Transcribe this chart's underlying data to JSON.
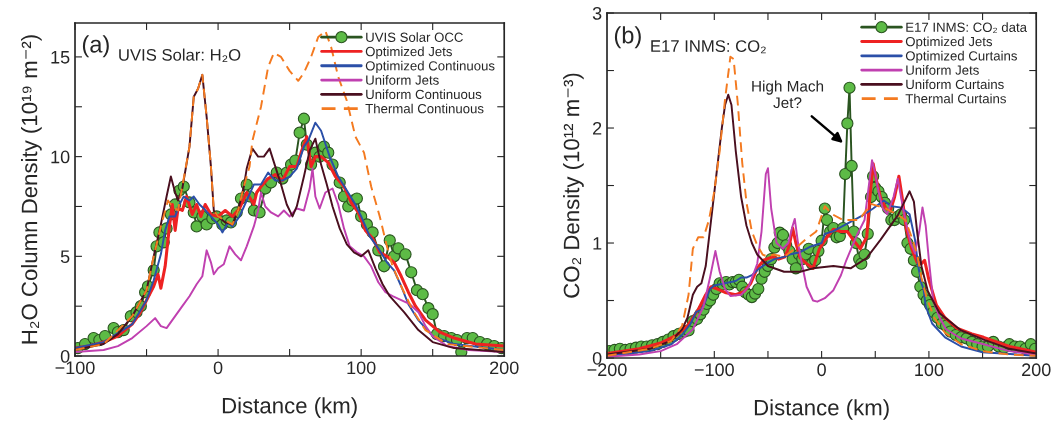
{
  "chart_data": [
    {
      "type": "line",
      "xlabel": "Distance (km)",
      "ylabel": "H₂O Column Density (10¹⁹ m⁻²)",
      "annotations": [
        "(a)",
        "UVIS Solar: H₂O"
      ],
      "xlim": [
        -100,
        200
      ],
      "xticks": [
        {
          "value": -100,
          "label": "−100"
        },
        {
          "value": -50,
          "label": null
        },
        0,
        {
          "value": 50,
          "label": null
        },
        100,
        {
          "value": 150,
          "label": null
        },
        200
      ],
      "ylim": [
        0,
        16.7
      ],
      "yticks": [
        0,
        {
          "value": 2.5,
          "label": null
        },
        5,
        {
          "value": 7.5,
          "label": null
        },
        10,
        {
          "value": 12.5,
          "label": null
        },
        15
      ],
      "legend": "top right",
      "grid": false,
      "series": [
        {
          "name": "UVIS Solar OCC",
          "color": "#5dbb46",
          "marker": "circle",
          "line_style": "solid",
          "x": [
            -98,
            -93,
            -87,
            -83,
            -79,
            -73,
            -70,
            -66,
            -61,
            -57,
            -54,
            -51,
            -49,
            -45,
            -43,
            -41,
            -38,
            -36,
            -33,
            -30,
            -27,
            -24,
            -20,
            -17,
            -15,
            -11,
            -8,
            -4,
            -1,
            3,
            6,
            9,
            13,
            16,
            20,
            22,
            25,
            29,
            33,
            37,
            41,
            45,
            48,
            51,
            54,
            57,
            60,
            62,
            65,
            68,
            71,
            74,
            77,
            80,
            85,
            88,
            91,
            94,
            97,
            100,
            104,
            108,
            112,
            116,
            120,
            123,
            126,
            131,
            135,
            139,
            143,
            147,
            150,
            153,
            158,
            163,
            167,
            170,
            174,
            178,
            183,
            188,
            193,
            198
          ],
          "values": [
            0.4,
            0.6,
            0.9,
            0.8,
            1.0,
            1.4,
            1.2,
            1.3,
            2.0,
            2.2,
            2.5,
            3.2,
            3.5,
            4.3,
            5.5,
            6.2,
            5.7,
            6.4,
            7.1,
            7.6,
            8.3,
            8.5,
            7.7,
            7.2,
            6.5,
            7.0,
            6.6,
            6.9,
            7.0,
            6.6,
            6.8,
            6.7,
            7.2,
            7.9,
            8.6,
            8.0,
            7.3,
            7.2,
            8.4,
            8.7,
            9.2,
            8.9,
            9.2,
            9.6,
            9.8,
            11.2,
            11.9,
            10.6,
            9.6,
            10.2,
            10.0,
            10.5,
            10.2,
            9.6,
            8.7,
            8.0,
            7.5,
            7.8,
            7.9,
            7.0,
            6.6,
            6.2,
            5.3,
            4.5,
            5.8,
            5.0,
            5.4,
            5.1,
            4.2,
            3.3,
            3.1,
            2.4,
            2.1,
            1.1,
            1.0,
            0.9,
            0.8,
            0.2,
            0.9,
            0.9,
            0.7,
            0.6,
            0.5,
            0.4
          ]
        },
        {
          "name": "Optimized Jets",
          "color": "#ee2222",
          "line_style": "solid",
          "x": [
            -100,
            -90,
            -80,
            -70,
            -60,
            -55,
            -50,
            -45,
            -42,
            -40,
            -37,
            -34,
            -32,
            -30,
            -28,
            -25,
            -22,
            -18,
            -15,
            -12,
            -9,
            -5,
            0,
            5,
            10,
            15,
            20,
            25,
            27,
            30,
            35,
            40,
            45,
            50,
            55,
            58,
            62,
            65,
            68,
            72,
            77,
            82,
            88,
            93,
            98,
            103,
            108,
            113,
            118,
            123,
            128,
            133,
            138,
            145,
            155,
            165,
            180,
            200
          ],
          "values": [
            0.4,
            0.5,
            0.7,
            1.0,
            1.6,
            2.1,
            2.8,
            3.5,
            4.1,
            3.4,
            4.5,
            6.5,
            7.6,
            6.3,
            7.4,
            7.3,
            8.0,
            7.1,
            7.6,
            7.0,
            7.6,
            7.1,
            7.0,
            7.3,
            7.0,
            7.4,
            8.2,
            7.6,
            8.2,
            8.5,
            8.9,
            9.1,
            8.8,
            9.5,
            9.5,
            10.2,
            11.0,
            9.5,
            10.0,
            10.0,
            9.7,
            9.0,
            8.5,
            7.7,
            7.2,
            6.3,
            5.9,
            5.2,
            5.0,
            4.7,
            4.0,
            3.2,
            2.5,
            1.8,
            1.2,
            0.9,
            0.6,
            0.5
          ]
        },
        {
          "name": "Optimized Continuous",
          "color": "#2b4fa8",
          "line_style": "solid",
          "x": [
            -100,
            -80,
            -60,
            -50,
            -45,
            -40,
            -37,
            -34,
            -30,
            -27,
            -24,
            -20,
            -17,
            -13,
            -10,
            -5,
            0,
            3,
            7,
            10,
            15,
            20,
            25,
            30,
            35,
            40,
            45,
            50,
            55,
            60,
            63,
            68,
            72,
            78,
            84,
            90,
            96,
            100,
            106,
            112,
            118,
            123,
            128,
            133,
            140,
            150,
            165,
            200
          ],
          "values": [
            0.4,
            0.7,
            1.6,
            2.8,
            3.8,
            5.1,
            6.3,
            7.0,
            7.0,
            7.6,
            8.0,
            7.8,
            8.0,
            7.6,
            7.4,
            7.0,
            6.6,
            6.2,
            6.7,
            6.5,
            7.0,
            7.8,
            8.6,
            8.6,
            9.2,
            8.8,
            8.8,
            9.0,
            9.4,
            10.5,
            10.8,
            11.7,
            11.3,
            10.0,
            9.0,
            8.3,
            7.6,
            7.0,
            6.0,
            5.4,
            4.7,
            4.3,
            3.5,
            2.6,
            1.8,
            1.0,
            0.6,
            0.3
          ]
        },
        {
          "name": "Uniform Jets",
          "color": "#c040b0",
          "line_style": "solid",
          "x": [
            -100,
            -80,
            -70,
            -60,
            -50,
            -44,
            -40,
            -36,
            -30,
            -25,
            -20,
            -15,
            -11,
            -8,
            -5,
            -3,
            0,
            4,
            8,
            12,
            16,
            20,
            25,
            28,
            30,
            33,
            37,
            42,
            46,
            50,
            55,
            60,
            64,
            66,
            68,
            71,
            75,
            80,
            84,
            88,
            92,
            97,
            102,
            107,
            112,
            117,
            122,
            128,
            134,
            140,
            145,
            150,
            160,
            175,
            200
          ],
          "values": [
            0.2,
            0.3,
            0.5,
            0.9,
            1.5,
            1.9,
            1.5,
            1.4,
            2.0,
            2.5,
            3.0,
            3.6,
            4.0,
            5.3,
            4.7,
            4.1,
            4.4,
            4.6,
            5.5,
            5.1,
            4.8,
            5.5,
            6.5,
            7.3,
            8.2,
            7.5,
            7.2,
            7.0,
            7.3,
            7.0,
            7.4,
            7.3,
            8.4,
            9.4,
            8.0,
            7.4,
            8.2,
            8.4,
            7.6,
            6.4,
            5.5,
            5.2,
            5.0,
            4.5,
            3.7,
            3.2,
            3.0,
            2.8,
            2.6,
            2.2,
            1.5,
            1.0,
            0.5,
            0.3,
            0.2
          ]
        },
        {
          "name": "Uniform Continuous",
          "color": "#4a0f1f",
          "line_style": "solid",
          "x": [
            -100,
            -80,
            -70,
            -60,
            -50,
            -45,
            -40,
            -36,
            -33,
            -30,
            -28,
            -25,
            -20,
            -17,
            -14,
            -11,
            -8,
            -5,
            -3,
            0,
            5,
            10,
            14,
            18,
            20,
            24,
            28,
            32,
            36,
            40,
            44,
            48,
            52,
            55,
            60,
            64,
            68,
            72,
            76,
            80,
            85,
            90,
            95,
            100,
            105,
            110,
            115,
            120,
            130,
            140,
            150,
            165,
            200
          ],
          "values": [
            0.3,
            0.6,
            1.1,
            2.0,
            3.3,
            5.0,
            6.6,
            8.0,
            9.0,
            8.2,
            7.8,
            8.4,
            10.5,
            13.0,
            13.4,
            14.1,
            12.0,
            9.5,
            7.3,
            7.0,
            6.7,
            6.6,
            7.3,
            8.5,
            9.4,
            10.4,
            10.0,
            10.0,
            10.4,
            9.5,
            8.6,
            7.6,
            7.0,
            7.5,
            9.0,
            10.3,
            10.9,
            9.6,
            8.6,
            7.5,
            6.4,
            5.6,
            5.2,
            5.0,
            5.3,
            4.4,
            3.6,
            3.0,
            2.2,
            1.3,
            0.7,
            0.4,
            0.2
          ]
        },
        {
          "name": "Thermal Continuous",
          "color": "#f47a20",
          "line_style": "dashed",
          "x": [
            -100,
            -80,
            -60,
            -50,
            -45,
            -40,
            -35,
            -32,
            -28,
            -25,
            -20,
            -17,
            -14,
            -11,
            -8,
            -5,
            -3,
            0,
            5,
            10,
            14,
            18,
            22,
            24,
            30,
            35,
            39,
            44,
            50,
            56,
            60,
            65,
            70,
            75,
            79,
            84,
            90,
            96,
            102,
            107,
            113,
            118,
            122,
            128,
            136,
            145,
            160,
            200
          ],
          "values": [
            0.3,
            0.6,
            2.0,
            3.3,
            5.0,
            6.5,
            7.8,
            7.5,
            7.3,
            8.5,
            10.5,
            13.0,
            13.4,
            14.1,
            12.0,
            9.5,
            7.3,
            7.0,
            6.8,
            6.6,
            7.3,
            8.5,
            9.5,
            10.8,
            12.5,
            14.5,
            15.2,
            15.0,
            14.3,
            13.8,
            14.2,
            15.0,
            16.0,
            16.3,
            15.5,
            14.0,
            12.8,
            11.0,
            10.2,
            8.5,
            7.0,
            5.5,
            4.5,
            3.5,
            2.3,
            1.3,
            0.6,
            0.3
          ]
        }
      ]
    },
    {
      "type": "line",
      "xlabel": "Distance (km)",
      "ylabel": "CO₂ Density (10¹² m⁻³)",
      "annotations": [
        "(b)",
        "E17 INMS: CO₂",
        {
          "text": "High Mach\nJet?",
          "x": 20,
          "y": 1.87
        }
      ],
      "xlim": [
        -200,
        200
      ],
      "xticks": [
        {
          "value": -200,
          "label": "−200"
        },
        {
          "value": -150,
          "label": null
        },
        {
          "value": -100,
          "label": "−100"
        },
        {
          "value": -50,
          "label": null
        },
        0,
        {
          "value": 50,
          "label": null
        },
        100,
        {
          "value": 150,
          "label": null
        },
        200
      ],
      "ylim": [
        0,
        3
      ],
      "yticks": [
        0,
        {
          "value": 0.5,
          "label": null
        },
        1,
        {
          "value": 1.5,
          "label": null
        },
        2,
        {
          "value": 2.5,
          "label": null
        },
        3
      ],
      "legend": "top right",
      "grid": false,
      "series": [
        {
          "name": "E17 INMS: CO₂ data",
          "color": "#5dbb46",
          "marker": "circle",
          "line_style": "solid",
          "x": [
            -198,
            -193,
            -188,
            -183,
            -178,
            -173,
            -168,
            -163,
            -158,
            -153,
            -148,
            -143,
            -138,
            -133,
            -128,
            -124,
            -120,
            -116,
            -113,
            -110,
            -107,
            -104,
            -101,
            -98,
            -95,
            -92,
            -89,
            -86,
            -83,
            -80,
            -77,
            -74,
            -71,
            -68,
            -65,
            -62,
            -59,
            -56,
            -53,
            -50,
            -47,
            -44,
            -41,
            -39,
            -36,
            -33,
            -30,
            -27,
            -24,
            -21,
            -18,
            -15,
            -12,
            -9,
            -6,
            -3,
            0,
            3,
            5,
            8,
            11,
            14,
            17,
            20,
            22,
            24,
            26,
            28,
            30,
            32,
            35,
            37,
            40,
            43,
            46,
            48,
            50,
            53,
            56,
            59,
            62,
            65,
            68,
            71,
            74,
            77,
            80,
            83,
            86,
            89,
            92,
            95,
            98,
            101,
            104,
            108,
            112,
            116,
            120,
            125,
            130,
            135,
            140,
            145,
            150,
            155,
            160,
            165,
            170,
            175,
            180,
            185,
            190,
            195,
            199
          ],
          "values": [
            0.06,
            0.07,
            0.08,
            0.07,
            0.08,
            0.09,
            0.1,
            0.1,
            0.11,
            0.12,
            0.14,
            0.16,
            0.19,
            0.21,
            0.23,
            0.24,
            0.32,
            0.34,
            0.38,
            0.42,
            0.47,
            0.5,
            0.55,
            0.6,
            0.65,
            0.64,
            0.66,
            0.64,
            0.66,
            0.66,
            0.68,
            0.62,
            0.57,
            0.55,
            0.53,
            0.56,
            0.6,
            0.69,
            0.75,
            0.8,
            0.86,
            0.96,
            1.0,
            1.09,
            1.07,
            0.98,
            0.93,
            0.86,
            0.78,
            0.9,
            0.86,
            0.9,
            0.95,
            0.82,
            0.85,
            0.93,
            1.02,
            1.3,
            1.2,
            1.1,
            1.13,
            1.05,
            1.06,
            1.13,
            1.6,
            2.04,
            2.35,
            1.67,
            1.1,
            1.0,
            0.86,
            0.82,
            0.9,
            1.08,
            1.4,
            1.58,
            1.48,
            1.45,
            1.4,
            1.35,
            1.3,
            1.2,
            1.2,
            1.23,
            1.25,
            1.2,
            1.0,
            0.95,
            0.85,
            0.75,
            0.62,
            0.55,
            0.5,
            0.46,
            0.4,
            0.35,
            0.3,
            0.28,
            0.23,
            0.2,
            0.18,
            0.17,
            0.14,
            0.12,
            0.1,
            0.1,
            0.14,
            0.1,
            0.09,
            0.12,
            0.1,
            0.1,
            0.08,
            0.12,
            0.08
          ]
        },
        {
          "name": "Optimized Jets",
          "color": "#ee2222",
          "line_style": "solid",
          "x": [
            -200,
            -170,
            -150,
            -135,
            -125,
            -115,
            -108,
            -103,
            -97,
            -90,
            -80,
            -72,
            -66,
            -60,
            -54,
            -46,
            -40,
            -34,
            -30,
            -27,
            -24,
            -20,
            -14,
            -8,
            -2,
            5,
            11,
            18,
            24,
            30,
            36,
            42,
            45,
            48,
            51,
            55,
            60,
            64,
            68,
            72,
            75,
            79,
            84,
            89,
            93,
            96,
            100,
            107,
            115,
            126,
            140,
            151,
            175,
            200
          ],
          "values": [
            0.04,
            0.08,
            0.13,
            0.2,
            0.28,
            0.42,
            0.55,
            0.62,
            0.6,
            0.57,
            0.55,
            0.58,
            0.65,
            0.78,
            0.85,
            0.88,
            0.86,
            0.88,
            0.98,
            1.13,
            1.0,
            0.87,
            0.82,
            0.78,
            0.95,
            1.05,
            1.12,
            1.1,
            1.1,
            1.02,
            0.95,
            1.05,
            1.4,
            1.69,
            1.55,
            1.39,
            1.3,
            1.28,
            1.4,
            1.58,
            1.4,
            1.12,
            0.95,
            0.83,
            0.82,
            0.85,
            0.68,
            0.46,
            0.35,
            0.26,
            0.21,
            0.18,
            0.1,
            0.05
          ]
        },
        {
          "name": "Optimized Curtains",
          "color": "#2b4fa8",
          "line_style": "solid",
          "x": [
            -200,
            -160,
            -140,
            -130,
            -122,
            -117,
            -112,
            -108,
            -104,
            -100,
            -90,
            -80,
            -75,
            -70,
            -65,
            -58,
            -50,
            -44,
            -35,
            -30,
            -20,
            -10,
            0,
            3,
            10,
            20,
            30,
            40,
            48,
            58,
            65,
            73,
            78,
            82,
            87,
            90,
            93,
            95,
            97,
            103,
            115,
            130,
            150,
            200
          ],
          "values": [
            0.02,
            0.06,
            0.12,
            0.2,
            0.3,
            0.4,
            0.42,
            0.5,
            0.6,
            0.63,
            0.65,
            0.67,
            0.7,
            0.7,
            0.72,
            0.78,
            0.83,
            0.86,
            0.88,
            0.9,
            0.92,
            0.97,
            1.0,
            1.08,
            1.1,
            1.15,
            1.2,
            1.25,
            1.3,
            1.37,
            1.32,
            1.31,
            1.28,
            1.25,
            1.03,
            0.8,
            0.65,
            0.6,
            0.45,
            0.3,
            0.18,
            0.1,
            0.05,
            0.02
          ]
        },
        {
          "name": "Uniform Jets",
          "color": "#c040b0",
          "line_style": "solid",
          "x": [
            -200,
            -170,
            -150,
            -135,
            -120,
            -110,
            -104,
            -99,
            -95,
            -90,
            -85,
            -75,
            -68,
            -60,
            -56,
            -52,
            -50,
            -47,
            -42,
            -36,
            -31,
            -27,
            -25,
            -22,
            -19,
            -14,
            -8,
            -4,
            3,
            11,
            18,
            23,
            33,
            40,
            44,
            47,
            50,
            53,
            57,
            61,
            67,
            71,
            74,
            78,
            83,
            87,
            91,
            94,
            97,
            100,
            104,
            110,
            116,
            130,
            151,
            175,
            200
          ],
          "values": [
            0.01,
            0.03,
            0.06,
            0.12,
            0.25,
            0.45,
            0.7,
            0.93,
            0.75,
            0.6,
            0.54,
            0.55,
            0.62,
            0.82,
            1.1,
            1.6,
            1.65,
            1.3,
            1.0,
            0.95,
            1.0,
            1.15,
            1.21,
            1.0,
            0.85,
            0.62,
            0.5,
            0.49,
            0.52,
            0.59,
            0.72,
            0.85,
            1.07,
            1.2,
            1.5,
            1.72,
            1.6,
            1.45,
            1.3,
            1.25,
            1.4,
            1.56,
            1.4,
            1.2,
            1.0,
            0.91,
            1.1,
            1.31,
            1.15,
            0.85,
            0.5,
            0.35,
            0.25,
            0.17,
            0.12,
            0.06,
            0.03
          ]
        },
        {
          "name": "Uniform Curtains",
          "color": "#4a0f1f",
          "line_style": "solid",
          "x": [
            -200,
            -160,
            -140,
            -130,
            -125,
            -120,
            -116,
            -112,
            -108,
            -103,
            -98,
            -93,
            -90,
            -87,
            -84,
            -80,
            -75,
            -70,
            -65,
            -60,
            -50,
            -35,
            -20,
            -8,
            11,
            27,
            42,
            55,
            71,
            82,
            86,
            89,
            93,
            99,
            110,
            130,
            151,
            175,
            200
          ],
          "values": [
            0.03,
            0.08,
            0.15,
            0.25,
            0.35,
            0.55,
            0.62,
            0.65,
            0.8,
            1.2,
            1.6,
            2.0,
            2.2,
            2.29,
            2.2,
            1.8,
            1.4,
            1.15,
            1.0,
            0.9,
            0.8,
            0.75,
            0.75,
            0.78,
            0.8,
            0.78,
            0.87,
            1.03,
            1.24,
            1.45,
            1.36,
            1.1,
            0.8,
            0.58,
            0.39,
            0.24,
            0.16,
            0.08,
            0.04
          ]
        },
        {
          "name": "Thermal Curtains",
          "color": "#f47a20",
          "line_style": "dashed",
          "x": [
            -200,
            -160,
            -140,
            -130,
            -124,
            -120,
            -115,
            -110,
            -105,
            -100,
            -95,
            -90,
            -85,
            -82,
            -78,
            -74,
            -70,
            -65,
            -60,
            -55,
            -50,
            -45,
            -35,
            -25,
            -15,
            -5,
            3,
            10,
            20,
            35,
            46,
            60,
            70,
            78,
            84,
            89,
            93,
            98,
            105,
            115,
            130,
            150,
            175,
            200
          ],
          "values": [
            0.02,
            0.08,
            0.15,
            0.28,
            0.55,
            0.95,
            1.05,
            1.05,
            1.2,
            1.45,
            1.8,
            2.25,
            2.62,
            2.6,
            2.2,
            1.7,
            1.35,
            1.1,
            0.98,
            0.9,
            0.88,
            0.9,
            0.88,
            0.95,
            1.03,
            1.1,
            1.32,
            1.25,
            1.2,
            1.2,
            1.34,
            1.3,
            1.25,
            1.2,
            1.05,
            0.9,
            0.7,
            0.52,
            0.35,
            0.22,
            0.12,
            0.06,
            0.03,
            0.02
          ]
        }
      ]
    }
  ]
}
